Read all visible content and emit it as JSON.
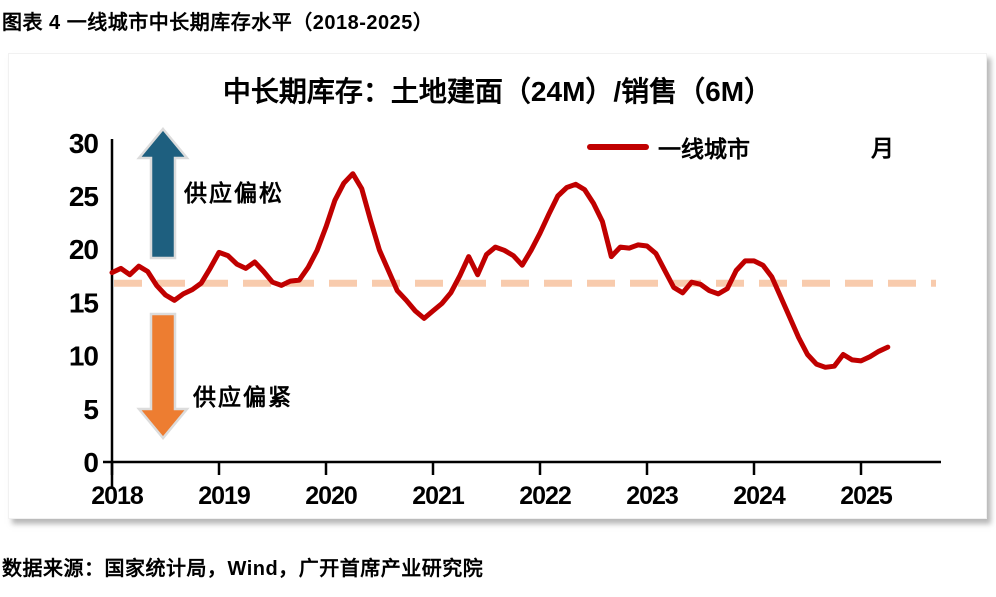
{
  "caption": "图表 4 一线城市中长期库存水平（2018-2025）",
  "source": "数据来源：国家统计局，Wind，广开首席产业研究院",
  "chart_data": {
    "type": "line",
    "title": "中长期库存：土地建面（24M）/销售（6M）",
    "unit": "月",
    "xlabel": "",
    "ylabel": "",
    "grid": false,
    "legend_position": "top-right",
    "x_frequency": "monthly",
    "x_start": "2018-01",
    "x_end": "2025-04",
    "xticks": [
      "2018",
      "2019",
      "2020",
      "2021",
      "2022",
      "2023",
      "2024",
      "2025"
    ],
    "yticks": [
      0,
      5,
      10,
      15,
      20,
      25,
      30
    ],
    "ylim": [
      0,
      30
    ],
    "series": [
      {
        "name": "一线城市",
        "color": "#C00000",
        "values": [
          17.8,
          18.2,
          17.6,
          18.4,
          17.9,
          16.6,
          15.7,
          15.2,
          15.8,
          16.2,
          16.8,
          18.2,
          19.7,
          19.4,
          18.6,
          18.2,
          18.8,
          17.9,
          16.9,
          16.6,
          17.0,
          17.1,
          18.3,
          19.9,
          22.1,
          24.6,
          26.2,
          27.1,
          25.7,
          22.7,
          19.9,
          18.0,
          16.1,
          15.2,
          14.2,
          13.5,
          14.2,
          14.9,
          15.9,
          17.5,
          19.3,
          17.6,
          19.5,
          20.2,
          19.9,
          19.4,
          18.5,
          19.9,
          21.5,
          23.3,
          25.0,
          25.8,
          26.1,
          25.6,
          24.3,
          22.6,
          19.3,
          20.2,
          20.1,
          20.4,
          20.3,
          19.6,
          18.0,
          16.4,
          15.9,
          16.9,
          16.7,
          16.1,
          15.8,
          16.3,
          18.0,
          18.9,
          18.9,
          18.5,
          17.4,
          15.5,
          13.6,
          11.7,
          10.1,
          9.2,
          8.9,
          9.0,
          10.1,
          9.6,
          9.5,
          9.9,
          10.4,
          10.8
        ]
      }
    ],
    "reference_line": {
      "value": 16.8,
      "color": "#F8CBAD",
      "style": "dashed"
    },
    "annotations": [
      {
        "text": "供应偏松",
        "arrow": "up",
        "color": "#1E5F7F"
      },
      {
        "text": "供应偏紧",
        "arrow": "down",
        "color": "#ED7D31"
      }
    ]
  }
}
